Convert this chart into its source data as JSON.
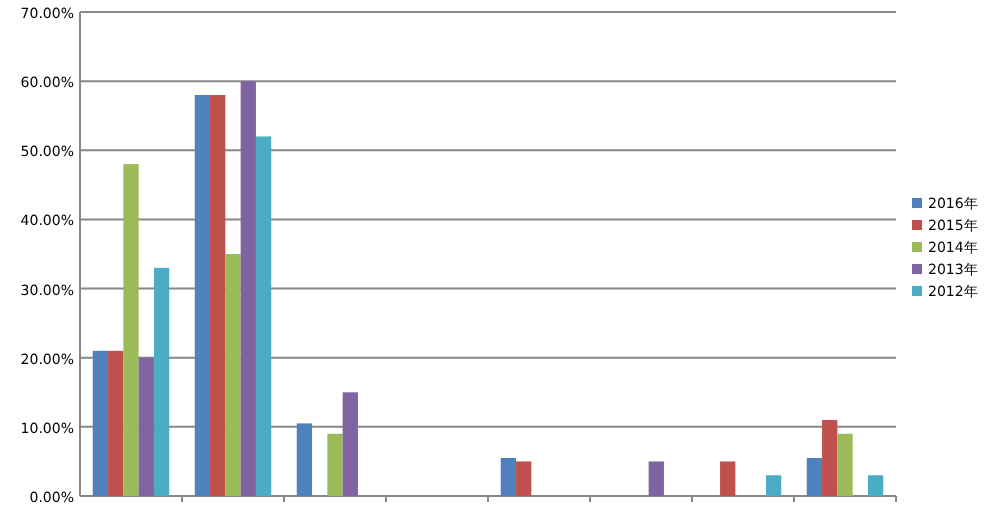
{
  "chart_data": {
    "type": "bar",
    "categories": [
      null,
      null,
      null,
      null,
      null,
      null,
      null,
      null
    ],
    "series": [
      {
        "name": "2016年",
        "color": "#4f81bd",
        "values": [
          21,
          58,
          10.5,
          null,
          5.5,
          null,
          null,
          5.5
        ]
      },
      {
        "name": "2015年",
        "color": "#c0504d",
        "values": [
          21,
          58,
          null,
          null,
          5,
          null,
          5,
          11
        ]
      },
      {
        "name": "2014年",
        "color": "#9bbb59",
        "values": [
          48,
          35,
          9,
          null,
          null,
          null,
          null,
          9
        ]
      },
      {
        "name": "2013年",
        "color": "#8064a2",
        "values": [
          20,
          60,
          15,
          null,
          null,
          5,
          null,
          null
        ]
      },
      {
        "name": "2012年",
        "color": "#4bacc6",
        "values": [
          33,
          52,
          null,
          null,
          null,
          null,
          3,
          3
        ]
      }
    ],
    "ylim": [
      0,
      70
    ],
    "yticks": [
      {
        "value": 0,
        "label": "0.00%"
      },
      {
        "value": 10,
        "label": "10.00%"
      },
      {
        "value": 20,
        "label": "20.00%"
      },
      {
        "value": 30,
        "label": "30.00%"
      },
      {
        "value": 40,
        "label": "40.00%"
      },
      {
        "value": 50,
        "label": "50.00%"
      },
      {
        "value": 60,
        "label": "60.00%"
      },
      {
        "value": 70,
        "label": "70.00%"
      }
    ],
    "grid": "y",
    "legend": "right"
  }
}
